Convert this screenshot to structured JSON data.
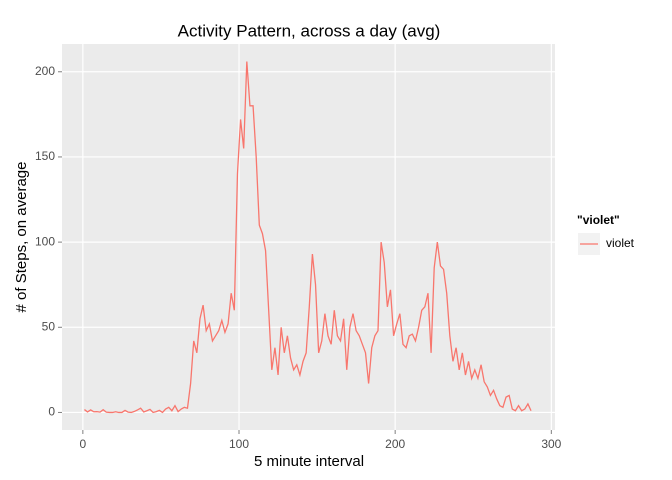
{
  "chart_data": {
    "type": "line",
    "title": "Activity Pattern, across a day (avg)",
    "x_label": "5 minute interval",
    "y_label": "# of Steps, on average",
    "legend_title": "\"violet\"",
    "legend": "right",
    "grid": true,
    "xlim": [
      -13.35,
      302.35
    ],
    "ylim": [
      -10.3,
      216.3
    ],
    "xticks": [
      0,
      100,
      200,
      300
    ],
    "yticks": [
      0,
      50,
      100,
      150,
      200
    ],
    "x": [
      1,
      3,
      5,
      7,
      9,
      11,
      13,
      15,
      17,
      19,
      21,
      23,
      25,
      27,
      29,
      31,
      33,
      35,
      37,
      39,
      41,
      43,
      45,
      47,
      49,
      51,
      53,
      55,
      57,
      59,
      61,
      63,
      65,
      67,
      69,
      71,
      73,
      75,
      77,
      79,
      81,
      83,
      85,
      87,
      89,
      91,
      93,
      95,
      97,
      99,
      101,
      103,
      105,
      107,
      109,
      111,
      113,
      115,
      117,
      119,
      121,
      123,
      125,
      127,
      129,
      131,
      133,
      135,
      137,
      139,
      141,
      143,
      145,
      147,
      149,
      151,
      153,
      155,
      157,
      159,
      161,
      163,
      165,
      167,
      169,
      171,
      173,
      175,
      177,
      179,
      181,
      183,
      185,
      187,
      189,
      191,
      193,
      195,
      197,
      199,
      201,
      203,
      205,
      207,
      209,
      211,
      213,
      215,
      217,
      219,
      221,
      223,
      225,
      227,
      229,
      231,
      233,
      235,
      237,
      239,
      241,
      243,
      245,
      247,
      249,
      251,
      253,
      255,
      257,
      259,
      261,
      263,
      265,
      267,
      269,
      271,
      273,
      275,
      277,
      279,
      281,
      283,
      285,
      287
    ],
    "series": [
      {
        "name": "violet",
        "color": "#F8766D",
        "values": [
          1.7,
          0.3,
          1.5,
          0.4,
          0.5,
          0.2,
          1.6,
          0.2,
          0,
          0,
          0.4,
          0,
          0,
          1.2,
          0.2,
          0,
          0.6,
          1.5,
          2.5,
          0.3,
          1,
          1.8,
          0,
          0.5,
          1.2,
          0,
          2,
          3,
          1,
          4,
          0.5,
          2,
          3,
          2.5,
          17,
          42,
          35,
          55,
          63,
          48,
          52,
          42,
          45,
          48,
          54,
          47,
          52,
          70,
          60,
          140,
          172,
          155,
          206,
          180,
          180,
          150,
          110,
          105,
          95,
          60,
          25,
          38,
          22,
          50,
          35,
          45,
          32,
          25,
          28,
          22,
          30,
          35,
          62,
          93,
          75,
          35,
          42,
          58,
          45,
          40,
          60,
          45,
          42,
          55,
          25,
          50,
          58,
          48,
          45,
          40,
          35,
          17,
          38,
          45,
          48,
          100,
          88,
          62,
          72,
          45,
          52,
          58,
          40,
          38,
          45,
          46,
          42,
          50,
          60,
          62,
          70,
          35,
          85,
          100,
          86,
          84,
          70,
          45,
          30,
          38,
          25,
          35,
          22,
          30,
          20,
          25,
          20,
          28,
          18,
          15,
          10,
          13,
          8,
          4,
          3,
          9,
          10,
          2,
          1,
          4,
          1,
          2,
          5,
          1
        ]
      }
    ]
  }
}
